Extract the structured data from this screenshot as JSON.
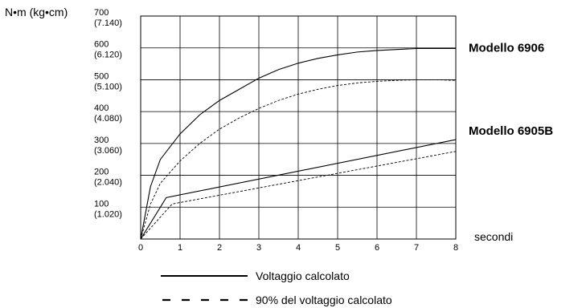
{
  "chart_data": {
    "type": "line",
    "y_axis_label": "N•m (kg•cm)",
    "x_axis_label": "secondi",
    "x_ticks": [
      "0",
      "1",
      "2",
      "3",
      "4",
      "5",
      "6",
      "7",
      "8"
    ],
    "y_ticks": [
      {
        "value": 100,
        "label": "100",
        "sub": "(1.020)"
      },
      {
        "value": 200,
        "label": "200",
        "sub": "(2.040)"
      },
      {
        "value": 300,
        "label": "300",
        "sub": "(3.060)"
      },
      {
        "value": 400,
        "label": "400",
        "sub": "(4.080)"
      },
      {
        "value": 500,
        "label": "500",
        "sub": "(5.100)"
      },
      {
        "value": 600,
        "label": "600",
        "sub": "(6.120)"
      },
      {
        "value": 700,
        "label": "700",
        "sub": "(7.140)"
      }
    ],
    "xlim": [
      0,
      8
    ],
    "ylim": [
      0,
      700
    ],
    "grid": true,
    "models": [
      {
        "name": "Modello 6906",
        "y_anchor": 600
      },
      {
        "name": "Modello 6905B",
        "y_anchor": 340
      }
    ],
    "series": [
      {
        "style": "solid",
        "points": [
          [
            0,
            0
          ],
          [
            0.25,
            165
          ],
          [
            0.5,
            250
          ],
          [
            1,
            330
          ],
          [
            1.5,
            390
          ],
          [
            2,
            435
          ],
          [
            2.5,
            470
          ],
          [
            3,
            505
          ],
          [
            3.5,
            532
          ],
          [
            4,
            552
          ],
          [
            4.5,
            567
          ],
          [
            5,
            578
          ],
          [
            5.5,
            587
          ],
          [
            6,
            592
          ],
          [
            6.5,
            595
          ],
          [
            7,
            598
          ],
          [
            7.5,
            598
          ],
          [
            8,
            598
          ]
        ]
      },
      {
        "style": "dashed",
        "points": [
          [
            0,
            0
          ],
          [
            0.25,
            110
          ],
          [
            0.5,
            175
          ],
          [
            1,
            245
          ],
          [
            1.5,
            300
          ],
          [
            2,
            345
          ],
          [
            2.5,
            380
          ],
          [
            3,
            410
          ],
          [
            3.5,
            435
          ],
          [
            4,
            455
          ],
          [
            4.5,
            470
          ],
          [
            5,
            482
          ],
          [
            5.5,
            490
          ],
          [
            6,
            495
          ],
          [
            6.5,
            498
          ],
          [
            7,
            500
          ],
          [
            7.5,
            500
          ],
          [
            8,
            498
          ]
        ]
      },
      {
        "style": "solid",
        "points": [
          [
            0,
            0
          ],
          [
            0.65,
            130
          ],
          [
            8,
            312
          ]
        ]
      },
      {
        "style": "dashed",
        "points": [
          [
            0,
            0
          ],
          [
            0.8,
            110
          ],
          [
            8,
            275
          ]
        ]
      }
    ],
    "legend": [
      {
        "style": "solid",
        "label": "Voltaggio calcolato"
      },
      {
        "style": "dashed",
        "label": "90% del voltaggio calcolato"
      }
    ]
  }
}
